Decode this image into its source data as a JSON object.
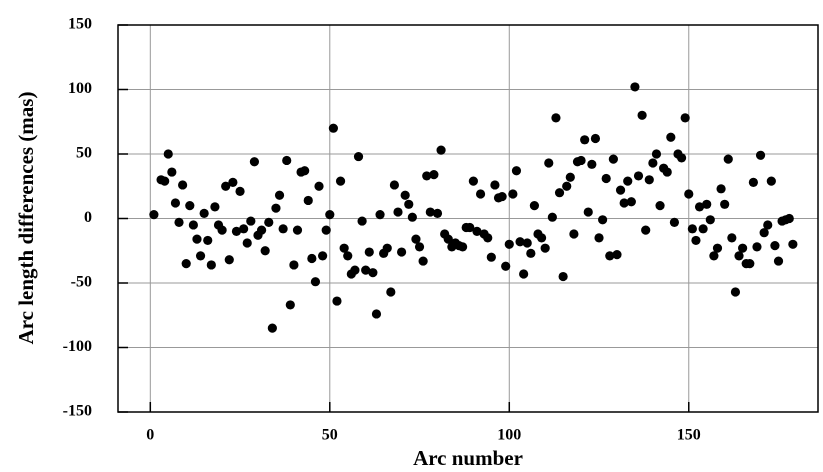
{
  "chart_data": {
    "type": "scatter",
    "xlabel": "Arc number",
    "ylabel": "Arc length differences (mas)",
    "xlim": [
      -9,
      186
    ],
    "ylim": [
      -150,
      150
    ],
    "xticks": [
      0,
      50,
      100,
      150
    ],
    "yticks": [
      -150,
      -100,
      -50,
      0,
      50,
      100,
      150
    ],
    "grid": true,
    "color": "#000000",
    "x": [
      1,
      3,
      4,
      5,
      6,
      7,
      8,
      9,
      10,
      11,
      12,
      13,
      14,
      15,
      16,
      17,
      18,
      19,
      20,
      21,
      22,
      23,
      24,
      25,
      26,
      27,
      28,
      29,
      30,
      31,
      32,
      33,
      34,
      35,
      36,
      37,
      38,
      39,
      40,
      41,
      42,
      43,
      44,
      45,
      46,
      47,
      48,
      49,
      50,
      51,
      52,
      53,
      54,
      55,
      56,
      57,
      58,
      59,
      60,
      61,
      62,
      63,
      64,
      65,
      66,
      67,
      68,
      69,
      70,
      71,
      72,
      73,
      74,
      75,
      76,
      77,
      78,
      79,
      80,
      81,
      82,
      83,
      84,
      85,
      86,
      87,
      88,
      89,
      90,
      91,
      92,
      93,
      94,
      95,
      96,
      97,
      98,
      99,
      100,
      101,
      102,
      103,
      104,
      105,
      106,
      107,
      108,
      109,
      110,
      111,
      112,
      113,
      114,
      115,
      116,
      117,
      118,
      119,
      120,
      121,
      122,
      123,
      124,
      125,
      126,
      127,
      128,
      129,
      130,
      131,
      132,
      133,
      134,
      135,
      136,
      137,
      138,
      139,
      140,
      141,
      142,
      143,
      144,
      145,
      146,
      147,
      148,
      149,
      150,
      151,
      152,
      153,
      154,
      155,
      156,
      157,
      158,
      159,
      160,
      161,
      162,
      163,
      164,
      165,
      166,
      167,
      168,
      169,
      170,
      171,
      172,
      173,
      174,
      175,
      176,
      177,
      178,
      179
    ],
    "values": [
      3,
      30,
      29,
      50,
      36,
      12,
      -3,
      26,
      -35,
      10,
      -5,
      -16,
      -29,
      4,
      -17,
      -36,
      9,
      -5,
      -9,
      25,
      -32,
      28,
      -10,
      21,
      -8,
      -19,
      -2,
      44,
      -13,
      -9,
      -25,
      -3,
      -85,
      8,
      18,
      -8,
      45,
      -67,
      -36,
      -9,
      36,
      37,
      14,
      -31,
      -49,
      25,
      -29,
      -9,
      3,
      70,
      -64,
      29,
      -23,
      -29,
      -43,
      -40,
      48,
      -2,
      -40,
      -26,
      -42,
      -74,
      3,
      -27,
      -23,
      -57,
      26,
      5,
      -26,
      18,
      11,
      1,
      -16,
      -22,
      -33,
      33,
      5,
      34,
      4,
      53,
      -12,
      -16,
      -22,
      -19,
      -21,
      -22,
      -7,
      -7,
      29,
      -10,
      19,
      -12,
      -15,
      -30,
      26,
      16,
      17,
      -37,
      -20,
      19,
      37,
      -18,
      -43,
      -19,
      -27,
      10,
      -12,
      -15,
      -23,
      43,
      1,
      78,
      20,
      -45,
      25,
      32,
      -12,
      44,
      45,
      61,
      5,
      42,
      62,
      -15,
      -1,
      31,
      -29,
      46,
      -28,
      22,
      12,
      29,
      13,
      102,
      33,
      80,
      -9,
      30,
      43,
      50,
      10,
      39,
      36,
      63,
      -3,
      50,
      47,
      78,
      19,
      -8,
      -17,
      9,
      -8,
      11,
      -1,
      -29,
      -23,
      23,
      11,
      46,
      -15,
      -57,
      -29,
      -23,
      -35,
      -35,
      28,
      -22,
      49,
      -11,
      -5,
      29,
      -21,
      -33,
      -2,
      -1,
      0,
      -20
    ]
  }
}
